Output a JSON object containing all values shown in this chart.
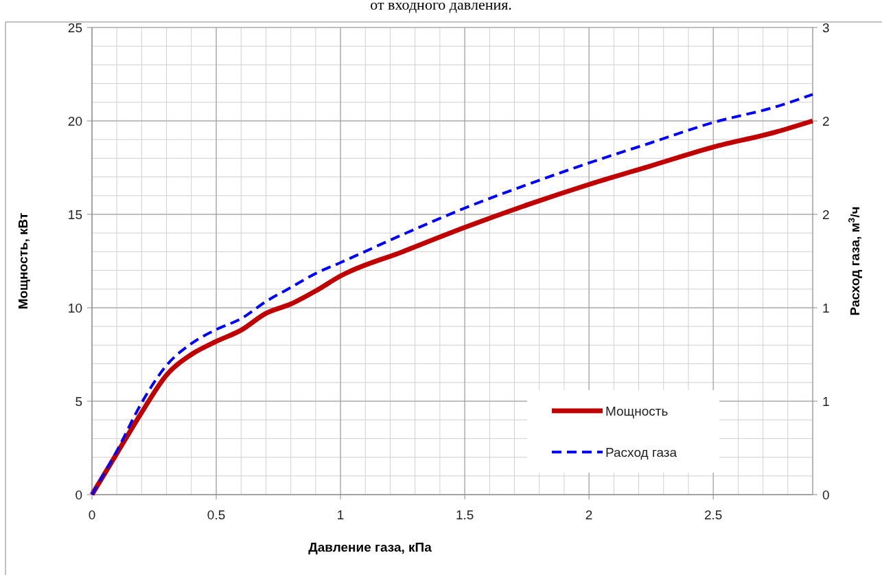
{
  "chart_data": {
    "type": "line",
    "title": "от входного давления.",
    "xlabel": "Давление газа, кПа",
    "ylabel": "Мощность, кВт",
    "y2label": "Расход газа, м$^{3}$/ч",
    "xlim": [
      0,
      2.9
    ],
    "xticks": [
      0,
      0.5,
      1,
      1.5,
      2,
      2.5
    ],
    "ylim": [
      0,
      25
    ],
    "yticks": [
      0,
      5,
      10,
      15,
      20,
      25
    ],
    "y2lim": [
      0,
      3
    ],
    "y2ticks": [
      0,
      {
        "value": 0.6,
        "label": "1"
      },
      {
        "value": 1.2,
        "label": "1"
      },
      {
        "value": 1.8,
        "label": "2"
      },
      {
        "value": 2.4,
        "label": "2"
      },
      3
    ],
    "grid": true,
    "legend": "bottom right",
    "series": [
      {
        "name": "Мощность",
        "color": "#c00000",
        "line_style": "solid",
        "x": [
          0,
          0.1,
          0.2,
          0.3,
          0.4,
          0.5,
          0.6,
          0.7,
          0.8,
          0.9,
          1,
          1.25,
          1.5,
          1.75,
          2,
          2.25,
          2.5,
          2.75,
          2.9
        ],
        "values": [
          0,
          2.2,
          4.4,
          6.4,
          7.5,
          8.2,
          8.8,
          9.7,
          10.2,
          10.9,
          11.7,
          13,
          14.3,
          15.5,
          16.6,
          17.6,
          18.6,
          19.4,
          20
        ]
      },
      {
        "name": "Расход газа",
        "color": "#0000ff",
        "line_style": "dashed",
        "axis": "y2",
        "x": [
          0,
          0.1,
          0.2,
          0.3,
          0.4,
          0.5,
          0.6,
          0.7,
          0.8,
          0.9,
          1,
          1.25,
          1.5,
          1.75,
          2,
          2.25,
          2.5,
          2.75,
          2.9
        ],
        "values": [
          0,
          0.28,
          0.59,
          0.83,
          0.97,
          1.06,
          1.13,
          1.24,
          1.33,
          1.42,
          1.49,
          1.67,
          1.84,
          1.99,
          2.13,
          2.26,
          2.39,
          2.49,
          2.57
        ]
      }
    ]
  }
}
